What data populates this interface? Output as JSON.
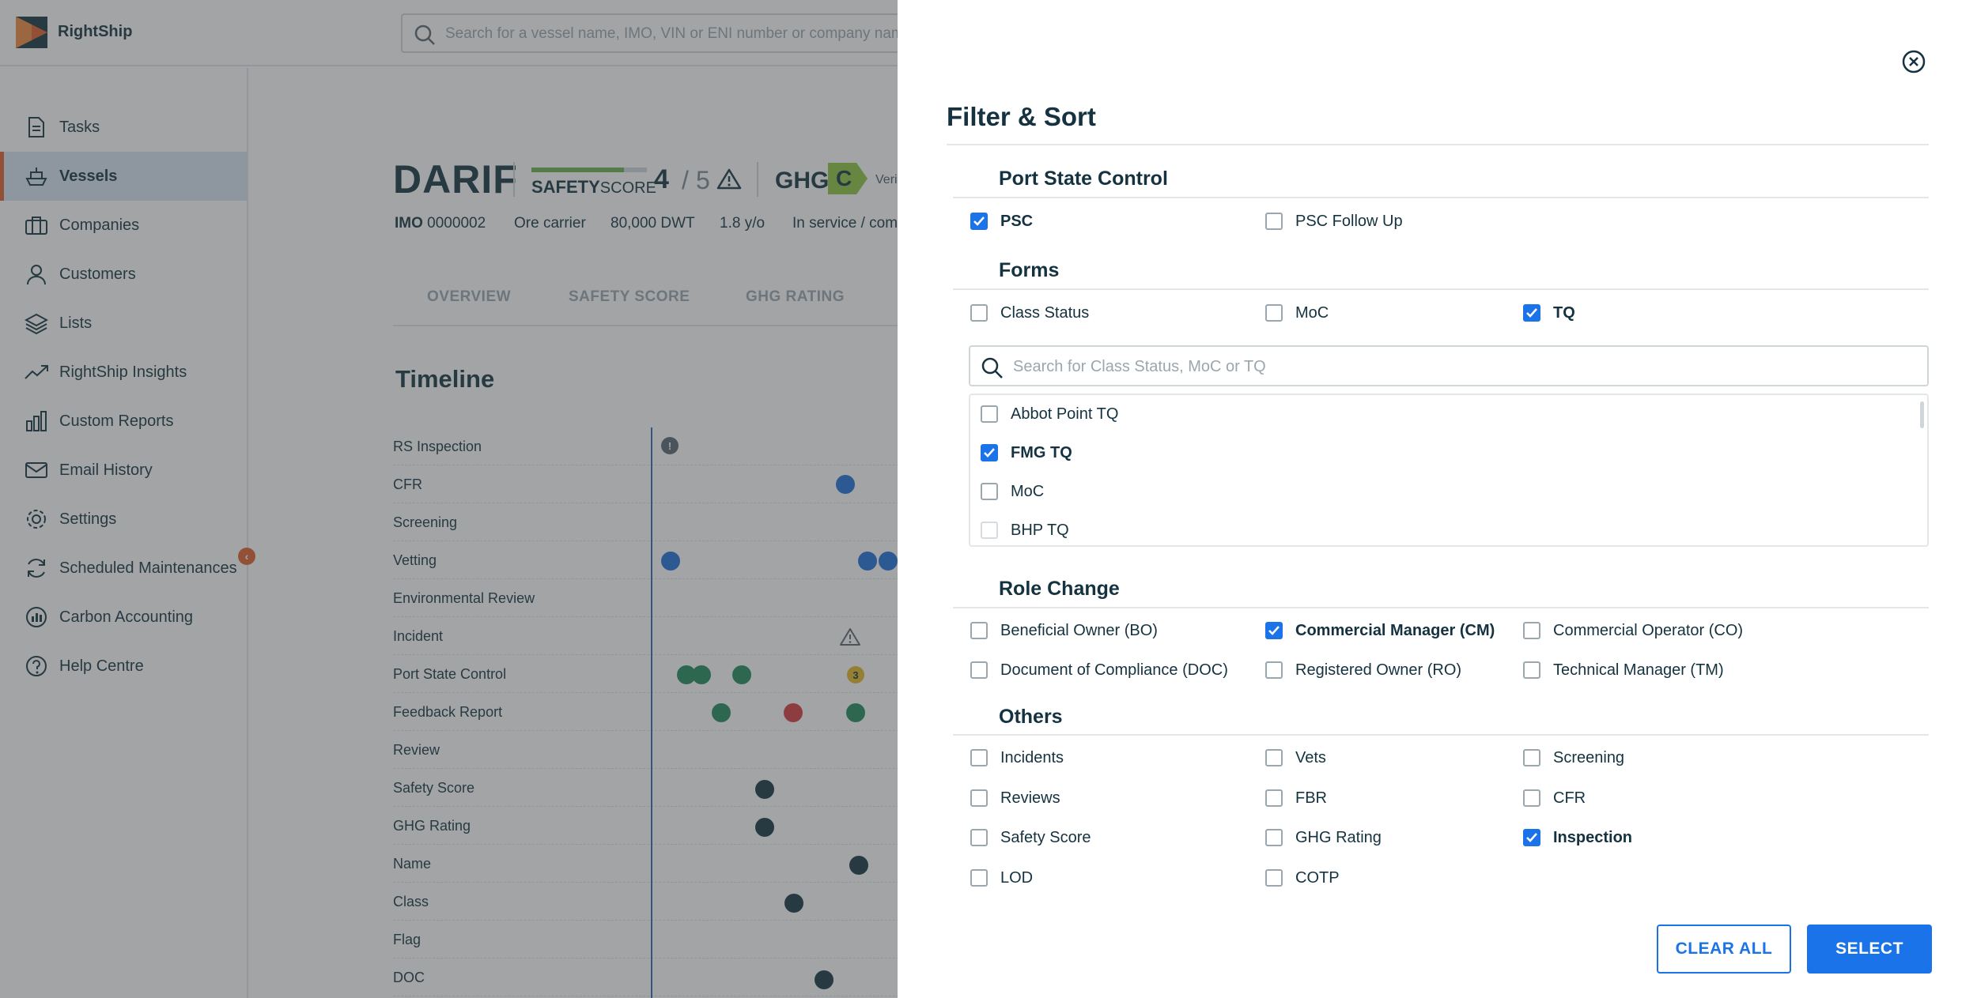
{
  "app": {
    "brand": "RightShip",
    "search_placeholder": "Search for a vessel name, IMO, VIN or ENI number or company name"
  },
  "sidebar": {
    "items": [
      {
        "label": "Tasks",
        "icon": "document-icon"
      },
      {
        "label": "Vessels",
        "icon": "ship-icon",
        "active": true
      },
      {
        "label": "Companies",
        "icon": "building-icon"
      },
      {
        "label": "Customers",
        "icon": "user-icon"
      },
      {
        "label": "Lists",
        "icon": "layers-icon"
      },
      {
        "label": "RightShip Insights",
        "icon": "trend-icon"
      },
      {
        "label": "Custom Reports",
        "icon": "bar-chart-icon"
      },
      {
        "label": "Email History",
        "icon": "mail-icon"
      },
      {
        "label": "Settings",
        "icon": "gear-icon"
      },
      {
        "label": "Scheduled Maintenances",
        "icon": "refresh-icon"
      },
      {
        "label": "Carbon Accounting",
        "icon": "carbon-icon"
      },
      {
        "label": "Help Centre",
        "icon": "help-icon"
      }
    ],
    "collapse_glyph": "‹"
  },
  "vessel": {
    "name": "DARIF",
    "safety_label_bold": "SAFETY",
    "safety_label_rest": "SCORE",
    "safety_score": "4",
    "safety_sep": "/",
    "safety_max": "5",
    "safety_fill": 0.8,
    "ghg_label": "GHG",
    "ghg_rating": "C",
    "ghg_color": "#8cc63f",
    "verified": "Veri",
    "imo_label": "IMO",
    "imo": "0000002",
    "type": "Ore carrier",
    "dwt": "80,000 DWT",
    "age": "1.8 y/o",
    "status": "In service / com"
  },
  "tabs": [
    "OVERVIEW",
    "SAFETY SCORE",
    "GHG RATING"
  ],
  "timeline": {
    "title": "Timeline",
    "rows": [
      "RS Inspection",
      "CFR",
      "Screening",
      "Vetting",
      "Environmental Review",
      "Incident",
      "Port State Control",
      "Feedback Report",
      "Review",
      "Safety Score",
      "GHG Rating",
      "Name",
      "Class",
      "Flag",
      "DOC"
    ],
    "rs_marker": "!",
    "psc_count": "3"
  },
  "filter": {
    "title": "Filter & Sort",
    "sections": {
      "psc": {
        "title": "Port State Control",
        "options": [
          {
            "label": "PSC",
            "checked": true
          },
          {
            "label": "PSC Follow Up",
            "checked": false
          }
        ]
      },
      "forms": {
        "title": "Forms",
        "options": [
          {
            "label": "Class Status",
            "checked": false
          },
          {
            "label": "MoC",
            "checked": false
          },
          {
            "label": "TQ",
            "checked": true
          }
        ],
        "search_placeholder": "Search for Class Status, MoC or TQ",
        "list": [
          {
            "label": "Abbot Point TQ",
            "checked": false
          },
          {
            "label": "FMG TQ",
            "checked": true
          },
          {
            "label": "MoC",
            "checked": false
          },
          {
            "label": "BHP TQ",
            "checked": false
          }
        ]
      },
      "role_change": {
        "title": "Role Change",
        "options": [
          {
            "label": "Beneficial Owner (BO)",
            "checked": false
          },
          {
            "label": "Commercial Manager (CM)",
            "checked": true
          },
          {
            "label": "Commercial Operator (CO)",
            "checked": false
          },
          {
            "label": "Document of Compliance (DOC)",
            "checked": false
          },
          {
            "label": "Registered Owner (RO)",
            "checked": false
          },
          {
            "label": "Technical Manager (TM)",
            "checked": false
          }
        ]
      },
      "others": {
        "title": "Others",
        "options": [
          {
            "label": "Incidents",
            "checked": false
          },
          {
            "label": "Vets",
            "checked": false
          },
          {
            "label": "Screening",
            "checked": false
          },
          {
            "label": "Reviews",
            "checked": false
          },
          {
            "label": "FBR",
            "checked": false
          },
          {
            "label": "CFR",
            "checked": false
          },
          {
            "label": "Safety Score",
            "checked": false
          },
          {
            "label": "GHG Rating",
            "checked": false
          },
          {
            "label": "Inspection",
            "checked": true
          },
          {
            "label": "LOD",
            "checked": false
          },
          {
            "label": "COTP",
            "checked": false
          }
        ]
      }
    },
    "clear_label": "CLEAR ALL",
    "select_label": "SELECT"
  },
  "colors": {
    "primary": "#1a73e8",
    "accent": "#e1602b",
    "text": "#14323f"
  }
}
